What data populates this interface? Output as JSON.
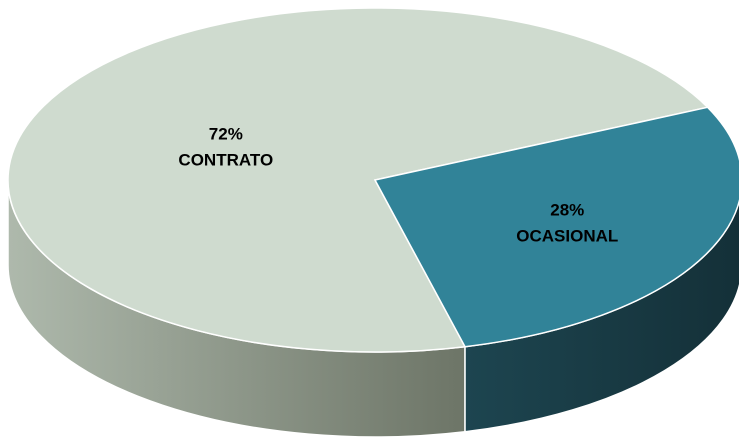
{
  "chart_data": {
    "type": "pie",
    "categories": [
      "CONTRATO",
      "OCASIONAL"
    ],
    "values": [
      72,
      28
    ],
    "value_labels": [
      "72%",
      "28%"
    ],
    "colors": [
      "#cfdbcf",
      "#318398"
    ],
    "side_colors": [
      [
        "#aeb9ac",
        "#6d7567"
      ],
      [
        "#1d4550",
        "#143038"
      ]
    ]
  }
}
